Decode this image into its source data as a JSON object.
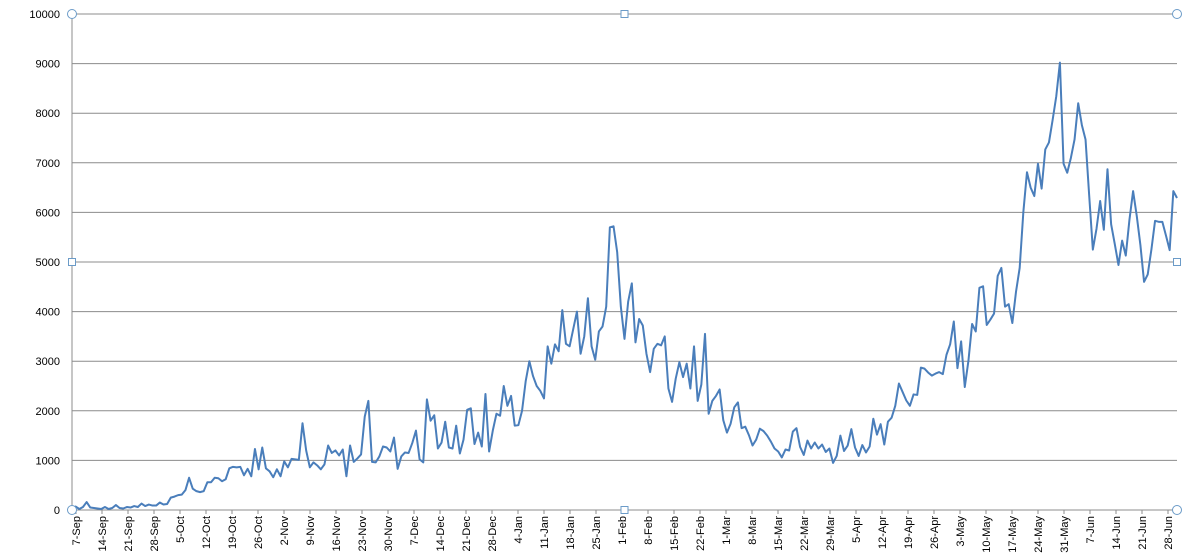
{
  "chart_data": {
    "type": "line",
    "title": "",
    "xlabel": "",
    "ylabel": "",
    "ylim": [
      0,
      10000
    ],
    "y_ticks": [
      0,
      1000,
      2000,
      3000,
      4000,
      5000,
      6000,
      7000,
      8000,
      9000,
      10000
    ],
    "grid": true,
    "legend": "none",
    "x_tick_labels": [
      "7-Sep",
      "14-Sep",
      "21-Sep",
      "28-Sep",
      "5-Oct",
      "12-Oct",
      "19-Oct",
      "26-Oct",
      "2-Nov",
      "9-Nov",
      "16-Nov",
      "23-Nov",
      "30-Nov",
      "7-Dec",
      "14-Dec",
      "21-Dec",
      "28-Dec",
      "4-Jan",
      "11-Jan",
      "18-Jan",
      "25-Jan",
      "1-Feb",
      "8-Feb",
      "15-Feb",
      "22-Feb",
      "1-Mar",
      "8-Mar",
      "15-Mar",
      "22-Mar",
      "29-Mar",
      "5-Apr",
      "12-Apr",
      "19-Apr",
      "26-Apr",
      "3-May",
      "10-May",
      "17-May",
      "24-May",
      "31-May",
      "7-Jun",
      "14-Jun",
      "21-Jun",
      "28-Jun"
    ],
    "series": [
      {
        "color": "#4a7ebb",
        "values": [
          40,
          70,
          20,
          60,
          160,
          50,
          40,
          30,
          20,
          60,
          20,
          40,
          100,
          40,
          30,
          60,
          50,
          80,
          60,
          130,
          80,
          110,
          90,
          90,
          150,
          110,
          120,
          250,
          270,
          300,
          310,
          400,
          650,
          430,
          380,
          360,
          380,
          560,
          560,
          650,
          640,
          580,
          620,
          840,
          870,
          860,
          870,
          700,
          830,
          680,
          1230,
          820,
          1260,
          840,
          780,
          660,
          820,
          680,
          980,
          860,
          1030,
          1020,
          1010,
          1750,
          1200,
          860,
          960,
          900,
          820,
          920,
          1300,
          1150,
          1200,
          1100,
          1220,
          680,
          1300,
          970,
          1040,
          1120,
          1880,
          2200,
          970,
          960,
          1080,
          1280,
          1260,
          1180,
          1460,
          830,
          1080,
          1160,
          1150,
          1350,
          1600,
          1020,
          960,
          2230,
          1800,
          1910,
          1240,
          1360,
          1780,
          1260,
          1240,
          1700,
          1140,
          1420,
          2020,
          2050,
          1330,
          1560,
          1280,
          2340,
          1180,
          1600,
          1940,
          1900,
          2500,
          2100,
          2300,
          1700,
          1710,
          2000,
          2600,
          3000,
          2700,
          2500,
          2400,
          2250,
          3300,
          2950,
          3340,
          3200,
          4030,
          3350,
          3300,
          3650,
          4000,
          3150,
          3500,
          4270,
          3300,
          3030,
          3600,
          3700,
          4100,
          5700,
          5720,
          5200,
          4100,
          3450,
          4200,
          4570,
          3380,
          3850,
          3720,
          3150,
          2780,
          3250,
          3350,
          3320,
          3500,
          2450,
          2180,
          2650,
          2980,
          2680,
          2950,
          2450,
          3300,
          2200,
          2530,
          3550,
          1940,
          2200,
          2300,
          2430,
          1810,
          1560,
          1740,
          2070,
          2170,
          1650,
          1680,
          1510,
          1300,
          1420,
          1640,
          1590,
          1500,
          1380,
          1240,
          1180,
          1060,
          1220,
          1200,
          1580,
          1650,
          1270,
          1110,
          1400,
          1240,
          1360,
          1240,
          1320,
          1170,
          1240,
          950,
          1090,
          1500,
          1190,
          1300,
          1630,
          1260,
          1090,
          1310,
          1160,
          1280,
          1840,
          1520,
          1730,
          1320,
          1780,
          1860,
          2100,
          2550,
          2380,
          2210,
          2100,
          2330,
          2320,
          2870,
          2850,
          2770,
          2710,
          2750,
          2780,
          2740,
          3130,
          3340,
          3800,
          2860,
          3400,
          2480,
          3010,
          3750,
          3600,
          4480,
          4510,
          3730,
          3840,
          3960,
          4720,
          4880,
          4100,
          4150,
          3770,
          4400,
          4880,
          6000,
          6810,
          6500,
          6330,
          6980,
          6480,
          7270,
          7410,
          7860,
          8340,
          9020,
          6980,
          6800,
          7100,
          7470,
          8200,
          7760,
          7470,
          6340,
          5250,
          5670,
          6230,
          5650,
          6870,
          5760,
          5360,
          4940,
          5430,
          5130,
          5850,
          6430,
          5930,
          5340,
          4600,
          4750,
          5250,
          5830,
          5810,
          5810,
          5530,
          5240,
          6430,
          6290
        ]
      }
    ]
  },
  "handles": {
    "corner": [
      "top-left",
      "top-right",
      "bottom-left",
      "bottom-right"
    ],
    "side": [
      "top-middle",
      "bottom-middle",
      "left-middle",
      "right-middle"
    ]
  }
}
